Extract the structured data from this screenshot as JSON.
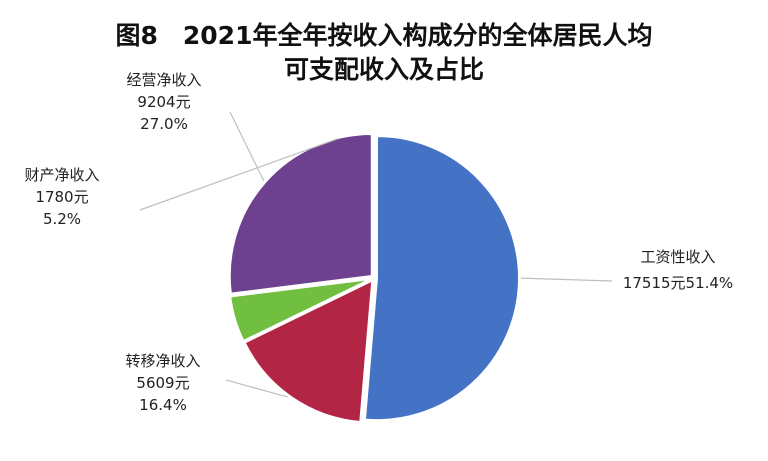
{
  "chart_data": {
    "type": "pie",
    "title_line1": "图8　2021年全年按收入构成分的全体居民人均",
    "title_line2": "可支配收入及占比",
    "unit": "元",
    "slices": [
      {
        "name": "工资性收入",
        "value": 17515,
        "percent": 51.4,
        "value_label": "17515元",
        "percent_label": "51.4%",
        "color": "#4472C4"
      },
      {
        "name": "转移净收入",
        "value": 5609,
        "percent": 16.4,
        "value_label": "5609元",
        "percent_label": "16.4%",
        "color": "#B22545"
      },
      {
        "name": "财产净收入",
        "value": 1780,
        "percent": 5.2,
        "value_label": "1780元",
        "percent_label": "5.2%",
        "color": "#70BF41"
      },
      {
        "name": "经营净收入",
        "value": 9204,
        "percent": 27.0,
        "value_label": "9204元",
        "percent_label": "27.0%",
        "color": "#6E4190"
      }
    ],
    "start_angle_deg": 0,
    "direction": "clockwise",
    "legend": "none",
    "labels": "outside-with-leader-lines"
  }
}
